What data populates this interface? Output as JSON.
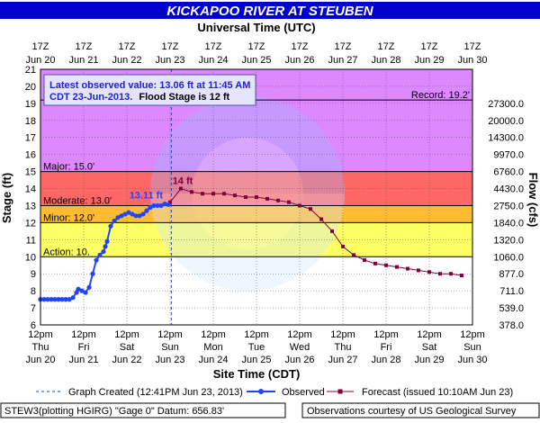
{
  "chart_data": {
    "type": "line",
    "title": "KICKAPOO RIVER AT STEUBEN",
    "top_axis_title": "Universal Time (UTC)",
    "top_ticks": [
      {
        "hour": "17Z",
        "date": "Jun 20",
        "x": "2013-06-20T12:00"
      },
      {
        "hour": "17Z",
        "date": "Jun 21",
        "x": "2013-06-21T12:00"
      },
      {
        "hour": "17Z",
        "date": "Jun 22",
        "x": "2013-06-22T12:00"
      },
      {
        "hour": "17Z",
        "date": "Jun 23",
        "x": "2013-06-23T12:00"
      },
      {
        "hour": "17Z",
        "date": "Jun 24",
        "x": "2013-06-24T12:00"
      },
      {
        "hour": "17Z",
        "date": "Jun 25",
        "x": "2013-06-25T12:00"
      },
      {
        "hour": "17Z",
        "date": "Jun 26",
        "x": "2013-06-26T12:00"
      },
      {
        "hour": "17Z",
        "date": "Jun 27",
        "x": "2013-06-27T12:00"
      },
      {
        "hour": "17Z",
        "date": "Jun 28",
        "x": "2013-06-28T12:00"
      },
      {
        "hour": "17Z",
        "date": "Jun 29",
        "x": "2013-06-29T12:00"
      },
      {
        "hour": "17Z",
        "date": "Jun 30",
        "x": "2013-06-30T12:00"
      }
    ],
    "xlabel": "Site Time (CDT)",
    "x_range": [
      "2013-06-20T12:00",
      "2013-06-30T12:00"
    ],
    "bottom_ticks": [
      {
        "time": "12pm",
        "day": "Thu",
        "date": "Jun 20",
        "x": "2013-06-20T12:00"
      },
      {
        "time": "12pm",
        "day": "Fri",
        "date": "Jun 21",
        "x": "2013-06-21T12:00"
      },
      {
        "time": "12pm",
        "day": "Sat",
        "date": "Jun 22",
        "x": "2013-06-22T12:00"
      },
      {
        "time": "12pm",
        "day": "Sun",
        "date": "Jun 23",
        "x": "2013-06-23T12:00"
      },
      {
        "time": "12pm",
        "day": "Mon",
        "date": "Jun 24",
        "x": "2013-06-24T12:00"
      },
      {
        "time": "12pm",
        "day": "Tue",
        "date": "Jun 25",
        "x": "2013-06-25T12:00"
      },
      {
        "time": "12pm",
        "day": "Wed",
        "date": "Jun 26",
        "x": "2013-06-26T12:00"
      },
      {
        "time": "12pm",
        "day": "Thu",
        "date": "Jun 27",
        "x": "2013-06-27T12:00"
      },
      {
        "time": "12pm",
        "day": "Fri",
        "date": "Jun 28",
        "x": "2013-06-28T12:00"
      },
      {
        "time": "12pm",
        "day": "Sat",
        "date": "Jun 29",
        "x": "2013-06-29T12:00"
      },
      {
        "time": "12pm",
        "day": "Sun",
        "date": "Jun 30",
        "x": "2013-06-30T12:00"
      }
    ],
    "ylabel": "Stage (ft)",
    "ylim": [
      6,
      21
    ],
    "y_ticks": [
      6,
      7,
      8,
      9,
      10,
      11,
      12,
      13,
      14,
      15,
      16,
      17,
      18,
      19,
      20,
      21
    ],
    "y2label": "Flow (cfs)",
    "flow_ticks": [
      {
        "stage": 6,
        "label": "378.0"
      },
      {
        "stage": 7,
        "label": "539.0"
      },
      {
        "stage": 8,
        "label": "711.0"
      },
      {
        "stage": 9,
        "label": "877.0"
      },
      {
        "stage": 10,
        "label": "1060.0"
      },
      {
        "stage": 11,
        "label": "1320.0"
      },
      {
        "stage": 12,
        "label": "1840.0"
      },
      {
        "stage": 13,
        "label": "2750.0"
      },
      {
        "stage": 14,
        "label": "4430.0"
      },
      {
        "stage": 15,
        "label": "6760.0"
      },
      {
        "stage": 16,
        "label": "9970.0"
      },
      {
        "stage": 17,
        "label": "14300.0"
      },
      {
        "stage": 18,
        "label": "20000.0"
      },
      {
        "stage": 19,
        "label": "27300.0"
      }
    ],
    "grid": true,
    "flood_categories": [
      {
        "name": "Action",
        "label": "Action: 10.",
        "from": 10,
        "to": 12,
        "color": "#ffff66"
      },
      {
        "name": "Minor",
        "label": "Minor: 12.0'",
        "from": 12,
        "to": 13,
        "color": "#ffbb33"
      },
      {
        "name": "Moderate",
        "label": "Moderate: 13.0'",
        "from": 13,
        "to": 15,
        "color": "#ff6666"
      },
      {
        "name": "Major",
        "label": "Major: 15.0'",
        "from": 15,
        "to": 21,
        "color": "#dd88ff"
      }
    ],
    "record": {
      "label": "Record: 19.2'",
      "value": 19.2
    },
    "series": [
      {
        "name": "Observed",
        "color": "#2244ff",
        "points": [
          [
            "2013-06-20T12:00",
            7.5
          ],
          [
            "2013-06-20T14:00",
            7.5
          ],
          [
            "2013-06-20T16:00",
            7.5
          ],
          [
            "2013-06-20T18:00",
            7.5
          ],
          [
            "2013-06-20T20:00",
            7.5
          ],
          [
            "2013-06-20T22:00",
            7.5
          ],
          [
            "2013-06-21T00:00",
            7.5
          ],
          [
            "2013-06-21T02:00",
            7.5
          ],
          [
            "2013-06-21T04:00",
            7.5
          ],
          [
            "2013-06-21T06:00",
            7.6
          ],
          [
            "2013-06-21T08:00",
            7.9
          ],
          [
            "2013-06-21T09:00",
            8.1
          ],
          [
            "2013-06-21T11:00",
            8.0
          ],
          [
            "2013-06-21T13:00",
            7.9
          ],
          [
            "2013-06-21T15:00",
            8.2
          ],
          [
            "2013-06-21T17:00",
            9.0
          ],
          [
            "2013-06-21T19:00",
            9.8
          ],
          [
            "2013-06-21T21:00",
            10.1
          ],
          [
            "2013-06-21T23:00",
            10.3
          ],
          [
            "2013-06-22T00:00",
            10.6
          ],
          [
            "2013-06-22T01:00",
            10.9
          ],
          [
            "2013-06-22T03:00",
            11.8
          ],
          [
            "2013-06-22T05:00",
            12.1
          ],
          [
            "2013-06-22T07:00",
            12.3
          ],
          [
            "2013-06-22T09:00",
            12.4
          ],
          [
            "2013-06-22T11:00",
            12.5
          ],
          [
            "2013-06-22T13:00",
            12.6
          ],
          [
            "2013-06-22T15:00",
            12.5
          ],
          [
            "2013-06-22T17:00",
            12.4
          ],
          [
            "2013-06-22T19:00",
            12.4
          ],
          [
            "2013-06-22T21:00",
            12.5
          ],
          [
            "2013-06-22T23:00",
            12.7
          ],
          [
            "2013-06-23T01:00",
            12.9
          ],
          [
            "2013-06-23T03:00",
            13.0
          ],
          [
            "2013-06-23T05:00",
            13.0
          ],
          [
            "2013-06-23T07:00",
            13.0
          ],
          [
            "2013-06-23T09:00",
            13.1
          ],
          [
            "2013-06-23T11:00",
            13.06
          ]
        ]
      },
      {
        "name": "Forecast (issued 10:10AM Jun 23)",
        "color": "#800040",
        "points": [
          [
            "2013-06-23T12:00",
            13.2
          ],
          [
            "2013-06-23T18:00",
            14.0
          ],
          [
            "2013-06-24T00:00",
            13.8
          ],
          [
            "2013-06-24T06:00",
            13.7
          ],
          [
            "2013-06-24T12:00",
            13.7
          ],
          [
            "2013-06-24T18:00",
            13.7
          ],
          [
            "2013-06-25T00:00",
            13.6
          ],
          [
            "2013-06-25T06:00",
            13.5
          ],
          [
            "2013-06-25T12:00",
            13.5
          ],
          [
            "2013-06-25T18:00",
            13.4
          ],
          [
            "2013-06-26T00:00",
            13.3
          ],
          [
            "2013-06-26T06:00",
            13.2
          ],
          [
            "2013-06-26T12:00",
            13.0
          ],
          [
            "2013-06-26T18:00",
            12.8
          ],
          [
            "2013-06-27T00:00",
            12.2
          ],
          [
            "2013-06-27T06:00",
            11.5
          ],
          [
            "2013-06-27T12:00",
            10.6
          ],
          [
            "2013-06-27T18:00",
            10.1
          ],
          [
            "2013-06-28T00:00",
            9.8
          ],
          [
            "2013-06-28T06:00",
            9.6
          ],
          [
            "2013-06-28T12:00",
            9.5
          ],
          [
            "2013-06-28T18:00",
            9.4
          ],
          [
            "2013-06-29T00:00",
            9.3
          ],
          [
            "2013-06-29T06:00",
            9.2
          ],
          [
            "2013-06-29T12:00",
            9.1
          ],
          [
            "2013-06-29T18:00",
            9.0
          ],
          [
            "2013-06-30T00:00",
            9.0
          ],
          [
            "2013-06-30T06:00",
            8.9
          ]
        ]
      }
    ],
    "graph_created_time": "2013-06-23T12:41",
    "annotations": {
      "latest_line1": "Latest observed value: 13.06 ft at 11:45 AM",
      "latest_line2a": "CDT 23-Jun-2013.",
      "latest_line2b": "Flood Stage is 12 ft",
      "observed_label": "13.11 ft",
      "observed_label_at": [
        "2013-06-23T09:00",
        13.1
      ],
      "forecast_peak_label": "14 ft",
      "forecast_peak_at": [
        "2013-06-23T18:00",
        14.0
      ]
    },
    "legend": {
      "placement": "bottom",
      "items": [
        {
          "label": "Graph Created (12:41PM Jun 23, 2013)",
          "style": "dashed",
          "color": "#2244aa"
        },
        {
          "label": "Observed",
          "style": "line-dot",
          "color": "#2244ff"
        },
        {
          "label": "Forecast (issued 10:10AM Jun 23)",
          "style": "line-square",
          "color": "#800040"
        }
      ]
    },
    "footer": {
      "left": "STEW3(plotting HGIRG) \"Gage 0\" Datum:  656.83'",
      "right": "Observations courtesy of US Geological Survey"
    },
    "colors": {
      "title_bar": "#0000cc",
      "grid": "#555555"
    }
  }
}
